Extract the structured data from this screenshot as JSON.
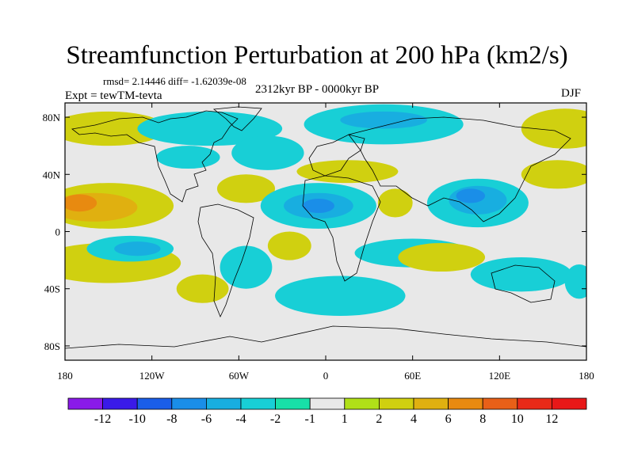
{
  "chart_data": {
    "type": "heatmap",
    "title": "Streamfunction Perturbation at 200 hPa (km2/s)",
    "stats_text": "rmsd= 2.14446 diff= -1.62039e-08",
    "experiment_text": "Expt = tewTM-tevta",
    "period_text": "2312kyr BP - 0000kyr BP",
    "season_text": "DJF",
    "x_range": [
      -180,
      180
    ],
    "y_range": [
      -90,
      90
    ],
    "x_ticks": [
      {
        "value": -180,
        "label": "180"
      },
      {
        "value": -120,
        "label": "120W"
      },
      {
        "value": -60,
        "label": "60W"
      },
      {
        "value": 0,
        "label": "0"
      },
      {
        "value": 60,
        "label": "60E"
      },
      {
        "value": 120,
        "label": "120E"
      },
      {
        "value": 180,
        "label": "180"
      }
    ],
    "y_ticks": [
      {
        "value": 80,
        "label": "80N"
      },
      {
        "value": 40,
        "label": "40N"
      },
      {
        "value": 0,
        "label": "0"
      },
      {
        "value": -40,
        "label": "40S"
      },
      {
        "value": -80,
        "label": "80S"
      }
    ],
    "colorbar": {
      "levels": [
        "-12",
        "-10",
        "-8",
        "-6",
        "-4",
        "-2",
        "-1",
        "1",
        "2",
        "4",
        "6",
        "8",
        "10",
        "12"
      ],
      "colors": [
        "#8a1ae8",
        "#3a1ae8",
        "#1a5ee8",
        "#1a8ee8",
        "#18aee0",
        "#18cfd6",
        "#18e0a8",
        "#e8e8e8",
        "#b0e018",
        "#d0d010",
        "#e0b010",
        "#e88a10",
        "#e86018",
        "#e82a18",
        "#e81818"
      ]
    },
    "fields": [
      {
        "name": "n-pacific-arctic",
        "lon": -150,
        "lat": 72,
        "rlon": 40,
        "rlat": 12,
        "level": "2"
      },
      {
        "name": "n-america-arctic",
        "lon": -80,
        "lat": 72,
        "rlon": 50,
        "rlat": 12,
        "level": "-2"
      },
      {
        "name": "n-america-south",
        "lon": -95,
        "lat": 52,
        "rlon": 22,
        "rlat": 8,
        "level": "-2"
      },
      {
        "name": "n-atlantic",
        "lon": -40,
        "lat": 55,
        "rlon": 25,
        "rlat": 12,
        "level": "-2"
      },
      {
        "name": "europe-arctic",
        "lon": 40,
        "lat": 75,
        "rlon": 55,
        "rlat": 14,
        "level": "-2"
      },
      {
        "name": "europe-arctic-core",
        "lon": 40,
        "lat": 78,
        "rlon": 30,
        "rlat": 6,
        "level": "-4"
      },
      {
        "name": "europe-south",
        "lon": 15,
        "lat": 42,
        "rlon": 35,
        "rlat": 8,
        "level": "2"
      },
      {
        "name": "e-pacific-arctic",
        "lon": 165,
        "lat": 72,
        "rlon": 30,
        "rlat": 14,
        "level": "2"
      },
      {
        "name": "w-pacific-40n",
        "lon": 160,
        "lat": 40,
        "rlon": 25,
        "rlat": 10,
        "level": "2"
      },
      {
        "name": "n-pacific-band",
        "lon": -150,
        "lat": 18,
        "rlon": 45,
        "rlat": 16,
        "level": "2"
      },
      {
        "name": "n-pacific-band-mid",
        "lon": -160,
        "lat": 17,
        "rlon": 30,
        "rlat": 10,
        "level": "4"
      },
      {
        "name": "n-pacific-band-core",
        "lon": -170,
        "lat": 20,
        "rlon": 12,
        "rlat": 6,
        "level": "6"
      },
      {
        "name": "caribbean",
        "lon": -55,
        "lat": 30,
        "rlon": 20,
        "rlat": 10,
        "level": "2"
      },
      {
        "name": "africa-north",
        "lon": -5,
        "lat": 18,
        "rlon": 40,
        "rlat": 16,
        "level": "-2"
      },
      {
        "name": "africa-north-mid",
        "lon": -5,
        "lat": 18,
        "rlon": 24,
        "rlat": 9,
        "level": "-4"
      },
      {
        "name": "africa-north-core",
        "lon": -5,
        "lat": 18,
        "rlon": 11,
        "rlat": 5,
        "level": "-6"
      },
      {
        "name": "arabia",
        "lon": 48,
        "lat": 20,
        "rlon": 12,
        "rlat": 10,
        "level": "2"
      },
      {
        "name": "asia",
        "lon": 105,
        "lat": 20,
        "rlon": 35,
        "rlat": 17,
        "level": "-2"
      },
      {
        "name": "asia-mid",
        "lon": 105,
        "lat": 22,
        "rlon": 20,
        "rlat": 10,
        "level": "-4"
      },
      {
        "name": "asia-core",
        "lon": 100,
        "lat": 25,
        "rlon": 10,
        "rlat": 5,
        "level": "-6"
      },
      {
        "name": "s-pacific",
        "lon": -150,
        "lat": -22,
        "rlon": 50,
        "rlat": 14,
        "level": "2"
      },
      {
        "name": "s-pacific-trough",
        "lon": -135,
        "lat": -12,
        "rlon": 30,
        "rlat": 9,
        "level": "-2"
      },
      {
        "name": "s-pacific-trough-core",
        "lon": -130,
        "lat": -12,
        "rlon": 16,
        "rlat": 5,
        "level": "-4"
      },
      {
        "name": "s-pacific-east",
        "lon": -85,
        "lat": -40,
        "rlon": 18,
        "rlat": 10,
        "level": "2"
      },
      {
        "name": "s-america",
        "lon": -55,
        "lat": -25,
        "rlon": 18,
        "rlat": 15,
        "level": "-2"
      },
      {
        "name": "s-atlantic",
        "lon": -25,
        "lat": -10,
        "rlon": 15,
        "rlat": 10,
        "level": "2"
      },
      {
        "name": "s-atlantic-south",
        "lon": 10,
        "lat": -45,
        "rlon": 45,
        "rlat": 14,
        "level": "-2"
      },
      {
        "name": "indian-ocean-north",
        "lon": 60,
        "lat": -15,
        "rlon": 40,
        "rlat": 10,
        "level": "-2"
      },
      {
        "name": "indian-ocean",
        "lon": 80,
        "lat": -18,
        "rlon": 30,
        "rlat": 10,
        "level": "2"
      },
      {
        "name": "australia",
        "lon": 135,
        "lat": -30,
        "rlon": 35,
        "rlat": 12,
        "level": "-2"
      },
      {
        "name": "s-pacific-west",
        "lon": 175,
        "lat": -35,
        "rlon": 10,
        "rlat": 12,
        "level": "-2"
      }
    ]
  }
}
